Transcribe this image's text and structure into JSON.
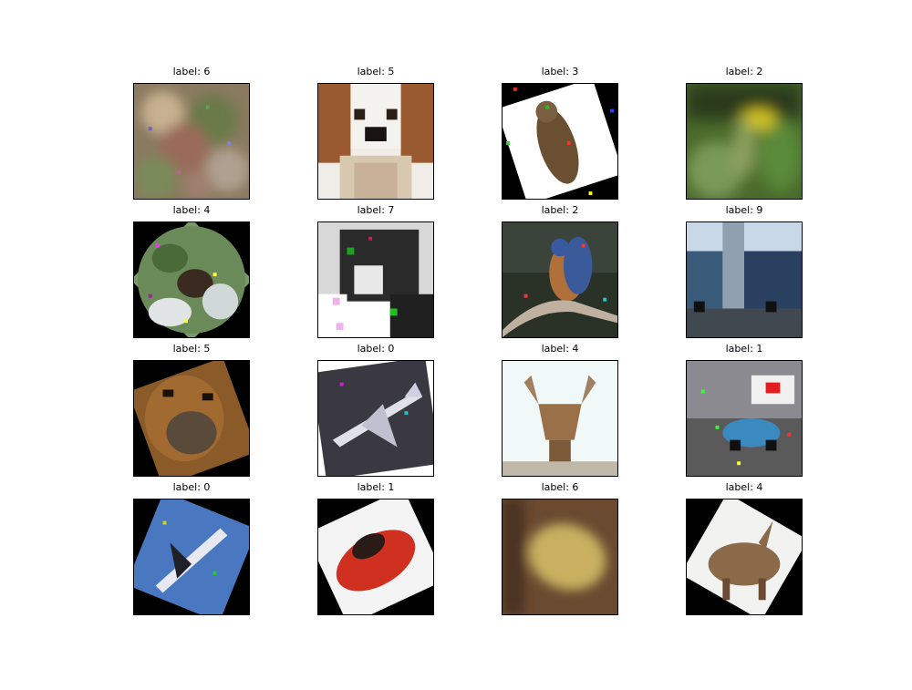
{
  "grid": {
    "panels": [
      {
        "title": "label: 6",
        "subject": "blurry-noisy-blob"
      },
      {
        "title": "label: 5",
        "subject": "dog-face-closeup"
      },
      {
        "title": "label: 3",
        "subject": "rotated-cat"
      },
      {
        "title": "label: 2",
        "subject": "yellow-bird-blurred"
      },
      {
        "title": "label: 4",
        "subject": "frog-on-leaves-rotated"
      },
      {
        "title": "label: 7",
        "subject": "horse-noisy"
      },
      {
        "title": "label: 2",
        "subject": "bluebird-on-branch"
      },
      {
        "title": "label: 9",
        "subject": "blue-trucks"
      },
      {
        "title": "label: 5",
        "subject": "dog-face-rotated"
      },
      {
        "title": "label: 0",
        "subject": "airplane-rotated"
      },
      {
        "title": "label: 4",
        "subject": "deer-antlers"
      },
      {
        "title": "label: 1",
        "subject": "blue-car-noisy"
      },
      {
        "title": "label: 0",
        "subject": "airplane-blue-sky-rotated"
      },
      {
        "title": "label: 1",
        "subject": "red-car-rotated"
      },
      {
        "title": "label: 6",
        "subject": "frog-closeup-blurred"
      },
      {
        "title": "label: 4",
        "subject": "deer-rotated"
      }
    ]
  },
  "colors": {
    "frame": "#000000",
    "title_text": "#000000",
    "background": "#ffffff"
  }
}
